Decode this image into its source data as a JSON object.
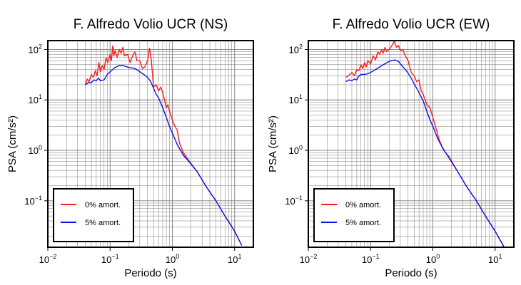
{
  "colors": {
    "undamped": "#ff1a1a",
    "damped": "#0a14e6",
    "grid": "#7a7a7a",
    "frame": "#000000"
  },
  "chart_data": [
    {
      "type": "line",
      "title": "F. Alfredo Volio UCR (NS)",
      "xlabel": "Periodo (s)",
      "ylabel": "PSA (cm/s²)",
      "xscale": "log",
      "yscale": "log",
      "xlim": [
        0.01,
        20
      ],
      "ylim": [
        0.012,
        150
      ],
      "grid": true,
      "legend": "bottom-left",
      "x_ticks": [
        {
          "v": 0.01,
          "b": "10",
          "e": "−2"
        },
        {
          "v": 0.1,
          "b": "10",
          "e": "−1"
        },
        {
          "v": 1,
          "b": "10",
          "e": "0"
        },
        {
          "v": 10,
          "b": "10",
          "e": "1"
        }
      ],
      "y_ticks": [
        {
          "v": 0.1,
          "b": "10",
          "e": "−1"
        },
        {
          "v": 1,
          "b": "10",
          "e": "0"
        },
        {
          "v": 10,
          "b": "10",
          "e": "1"
        },
        {
          "v": 100,
          "b": "10",
          "e": "2"
        }
      ],
      "series": [
        {
          "name": "0% amort.",
          "color": "#ff1a1a",
          "points": [
            [
              0.04,
              20
            ],
            [
              0.043,
              26
            ],
            [
              0.046,
              23
            ],
            [
              0.05,
              32
            ],
            [
              0.054,
              28
            ],
            [
              0.058,
              38
            ],
            [
              0.062,
              30
            ],
            [
              0.066,
              55
            ],
            [
              0.07,
              36
            ],
            [
              0.075,
              48
            ],
            [
              0.08,
              40
            ],
            [
              0.086,
              68
            ],
            [
              0.092,
              55
            ],
            [
              0.1,
              80
            ],
            [
              0.105,
              60
            ],
            [
              0.11,
              118
            ],
            [
              0.115,
              75
            ],
            [
              0.12,
              95
            ],
            [
              0.13,
              70
            ],
            [
              0.14,
              100
            ],
            [
              0.15,
              85
            ],
            [
              0.16,
              110
            ],
            [
              0.17,
              75
            ],
            [
              0.19,
              80
            ],
            [
              0.21,
              55
            ],
            [
              0.23,
              75
            ],
            [
              0.25,
              90
            ],
            [
              0.27,
              60
            ],
            [
              0.3,
              60
            ],
            [
              0.33,
              42
            ],
            [
              0.36,
              45
            ],
            [
              0.4,
              60
            ],
            [
              0.43,
              105
            ],
            [
              0.46,
              60
            ],
            [
              0.5,
              18
            ],
            [
              0.55,
              20
            ],
            [
              0.6,
              15
            ],
            [
              0.65,
              18
            ],
            [
              0.7,
              14
            ],
            [
              0.75,
              10
            ],
            [
              0.8,
              7
            ],
            [
              0.85,
              8
            ],
            [
              0.9,
              6
            ],
            [
              1.0,
              4
            ],
            [
              1.1,
              3
            ],
            [
              1.2,
              2.5
            ],
            [
              1.3,
              1.4
            ],
            [
              1.5,
              0.9
            ],
            [
              1.8,
              0.65
            ],
            [
              2.5,
              0.38
            ],
            [
              3.5,
              0.19
            ],
            [
              5,
              0.1
            ],
            [
              7,
              0.05
            ],
            [
              10,
              0.025
            ],
            [
              13,
              0.013
            ]
          ]
        },
        {
          "name": "5% amort.",
          "color": "#0a14e6",
          "points": [
            [
              0.04,
              20
            ],
            [
              0.045,
              22
            ],
            [
              0.05,
              22
            ],
            [
              0.055,
              25
            ],
            [
              0.06,
              24
            ],
            [
              0.065,
              27
            ],
            [
              0.07,
              24
            ],
            [
              0.08,
              25
            ],
            [
              0.09,
              32
            ],
            [
              0.1,
              36
            ],
            [
              0.11,
              40
            ],
            [
              0.12,
              44
            ],
            [
              0.14,
              48
            ],
            [
              0.16,
              48
            ],
            [
              0.18,
              46
            ],
            [
              0.2,
              44
            ],
            [
              0.23,
              43
            ],
            [
              0.26,
              41
            ],
            [
              0.3,
              36
            ],
            [
              0.35,
              32
            ],
            [
              0.4,
              28
            ],
            [
              0.45,
              23
            ],
            [
              0.5,
              17
            ],
            [
              0.55,
              13
            ],
            [
              0.6,
              11
            ],
            [
              0.7,
              7
            ],
            [
              0.8,
              4.5
            ],
            [
              0.9,
              3
            ],
            [
              1.0,
              2.2
            ],
            [
              1.2,
              1.3
            ],
            [
              1.5,
              0.8
            ],
            [
              1.8,
              0.62
            ],
            [
              2.5,
              0.38
            ],
            [
              3.5,
              0.19
            ],
            [
              5,
              0.1
            ],
            [
              7,
              0.05
            ],
            [
              10,
              0.025
            ],
            [
              13,
              0.013
            ]
          ]
        }
      ]
    },
    {
      "type": "line",
      "title": "F. Alfredo Volio UCR (EW)",
      "xlabel": "Periodo (s)",
      "ylabel": "PSA (cm/s²)",
      "xscale": "log",
      "yscale": "log",
      "xlim": [
        0.01,
        20
      ],
      "ylim": [
        0.012,
        150
      ],
      "grid": true,
      "legend": "bottom-left",
      "x_ticks": [
        {
          "v": 0.01,
          "b": "10",
          "e": "−2"
        },
        {
          "v": 0.1,
          "b": "10",
          "e": "−1"
        },
        {
          "v": 1,
          "b": "10",
          "e": "0"
        },
        {
          "v": 10,
          "b": "10",
          "e": "1"
        }
      ],
      "y_ticks": [
        {
          "v": 0.1,
          "b": "10",
          "e": "−1"
        },
        {
          "v": 1,
          "b": "10",
          "e": "0"
        },
        {
          "v": 10,
          "b": "10",
          "e": "1"
        },
        {
          "v": 100,
          "b": "10",
          "e": "2"
        }
      ],
      "series": [
        {
          "name": "0% amort.",
          "color": "#ff1a1a",
          "points": [
            [
              0.04,
              28
            ],
            [
              0.045,
              31
            ],
            [
              0.05,
              35
            ],
            [
              0.055,
              30
            ],
            [
              0.06,
              40
            ],
            [
              0.065,
              38
            ],
            [
              0.07,
              50
            ],
            [
              0.075,
              42
            ],
            [
              0.08,
              55
            ],
            [
              0.085,
              45
            ],
            [
              0.09,
              60
            ],
            [
              0.1,
              52
            ],
            [
              0.11,
              75
            ],
            [
              0.12,
              62
            ],
            [
              0.13,
              90
            ],
            [
              0.14,
              80
            ],
            [
              0.15,
              100
            ],
            [
              0.16,
              85
            ],
            [
              0.17,
              110
            ],
            [
              0.18,
              92
            ],
            [
              0.2,
              100
            ],
            [
              0.22,
              120
            ],
            [
              0.24,
              145
            ],
            [
              0.26,
              110
            ],
            [
              0.28,
              120
            ],
            [
              0.3,
              95
            ],
            [
              0.33,
              100
            ],
            [
              0.36,
              75
            ],
            [
              0.4,
              60
            ],
            [
              0.45,
              35
            ],
            [
              0.5,
              30
            ],
            [
              0.55,
              23
            ],
            [
              0.6,
              25
            ],
            [
              0.65,
              15
            ],
            [
              0.7,
              13
            ],
            [
              0.75,
              10
            ],
            [
              0.8,
              8
            ],
            [
              0.9,
              7
            ],
            [
              1.0,
              4.5
            ],
            [
              1.1,
              3
            ],
            [
              1.25,
              1.7
            ],
            [
              1.4,
              1.2
            ],
            [
              1.6,
              0.9
            ],
            [
              2.0,
              0.58
            ],
            [
              2.5,
              0.38
            ],
            [
              3.5,
              0.19
            ],
            [
              5,
              0.1
            ],
            [
              7,
              0.05
            ],
            [
              10,
              0.025
            ],
            [
              14,
              0.012
            ]
          ]
        },
        {
          "name": "5% amort.",
          "color": "#0a14e6",
          "points": [
            [
              0.04,
              23
            ],
            [
              0.045,
              25
            ],
            [
              0.05,
              24
            ],
            [
              0.055,
              26
            ],
            [
              0.06,
              25
            ],
            [
              0.065,
              30
            ],
            [
              0.07,
              32
            ],
            [
              0.08,
              32
            ],
            [
              0.09,
              33
            ],
            [
              0.1,
              35
            ],
            [
              0.12,
              40
            ],
            [
              0.14,
              45
            ],
            [
              0.16,
              50
            ],
            [
              0.18,
              54
            ],
            [
              0.2,
              58
            ],
            [
              0.22,
              61
            ],
            [
              0.25,
              62
            ],
            [
              0.28,
              58
            ],
            [
              0.3,
              52
            ],
            [
              0.35,
              42
            ],
            [
              0.4,
              34
            ],
            [
              0.45,
              27
            ],
            [
              0.5,
              21
            ],
            [
              0.6,
              14
            ],
            [
              0.7,
              9.5
            ],
            [
              0.8,
              6
            ],
            [
              0.9,
              4
            ],
            [
              1.0,
              3
            ],
            [
              1.2,
              1.7
            ],
            [
              1.5,
              1.0
            ],
            [
              1.8,
              0.75
            ],
            [
              2.5,
              0.38
            ],
            [
              3.5,
              0.19
            ],
            [
              5,
              0.1
            ],
            [
              7,
              0.05
            ],
            [
              10,
              0.025
            ],
            [
              14,
              0.012
            ]
          ]
        }
      ]
    }
  ]
}
